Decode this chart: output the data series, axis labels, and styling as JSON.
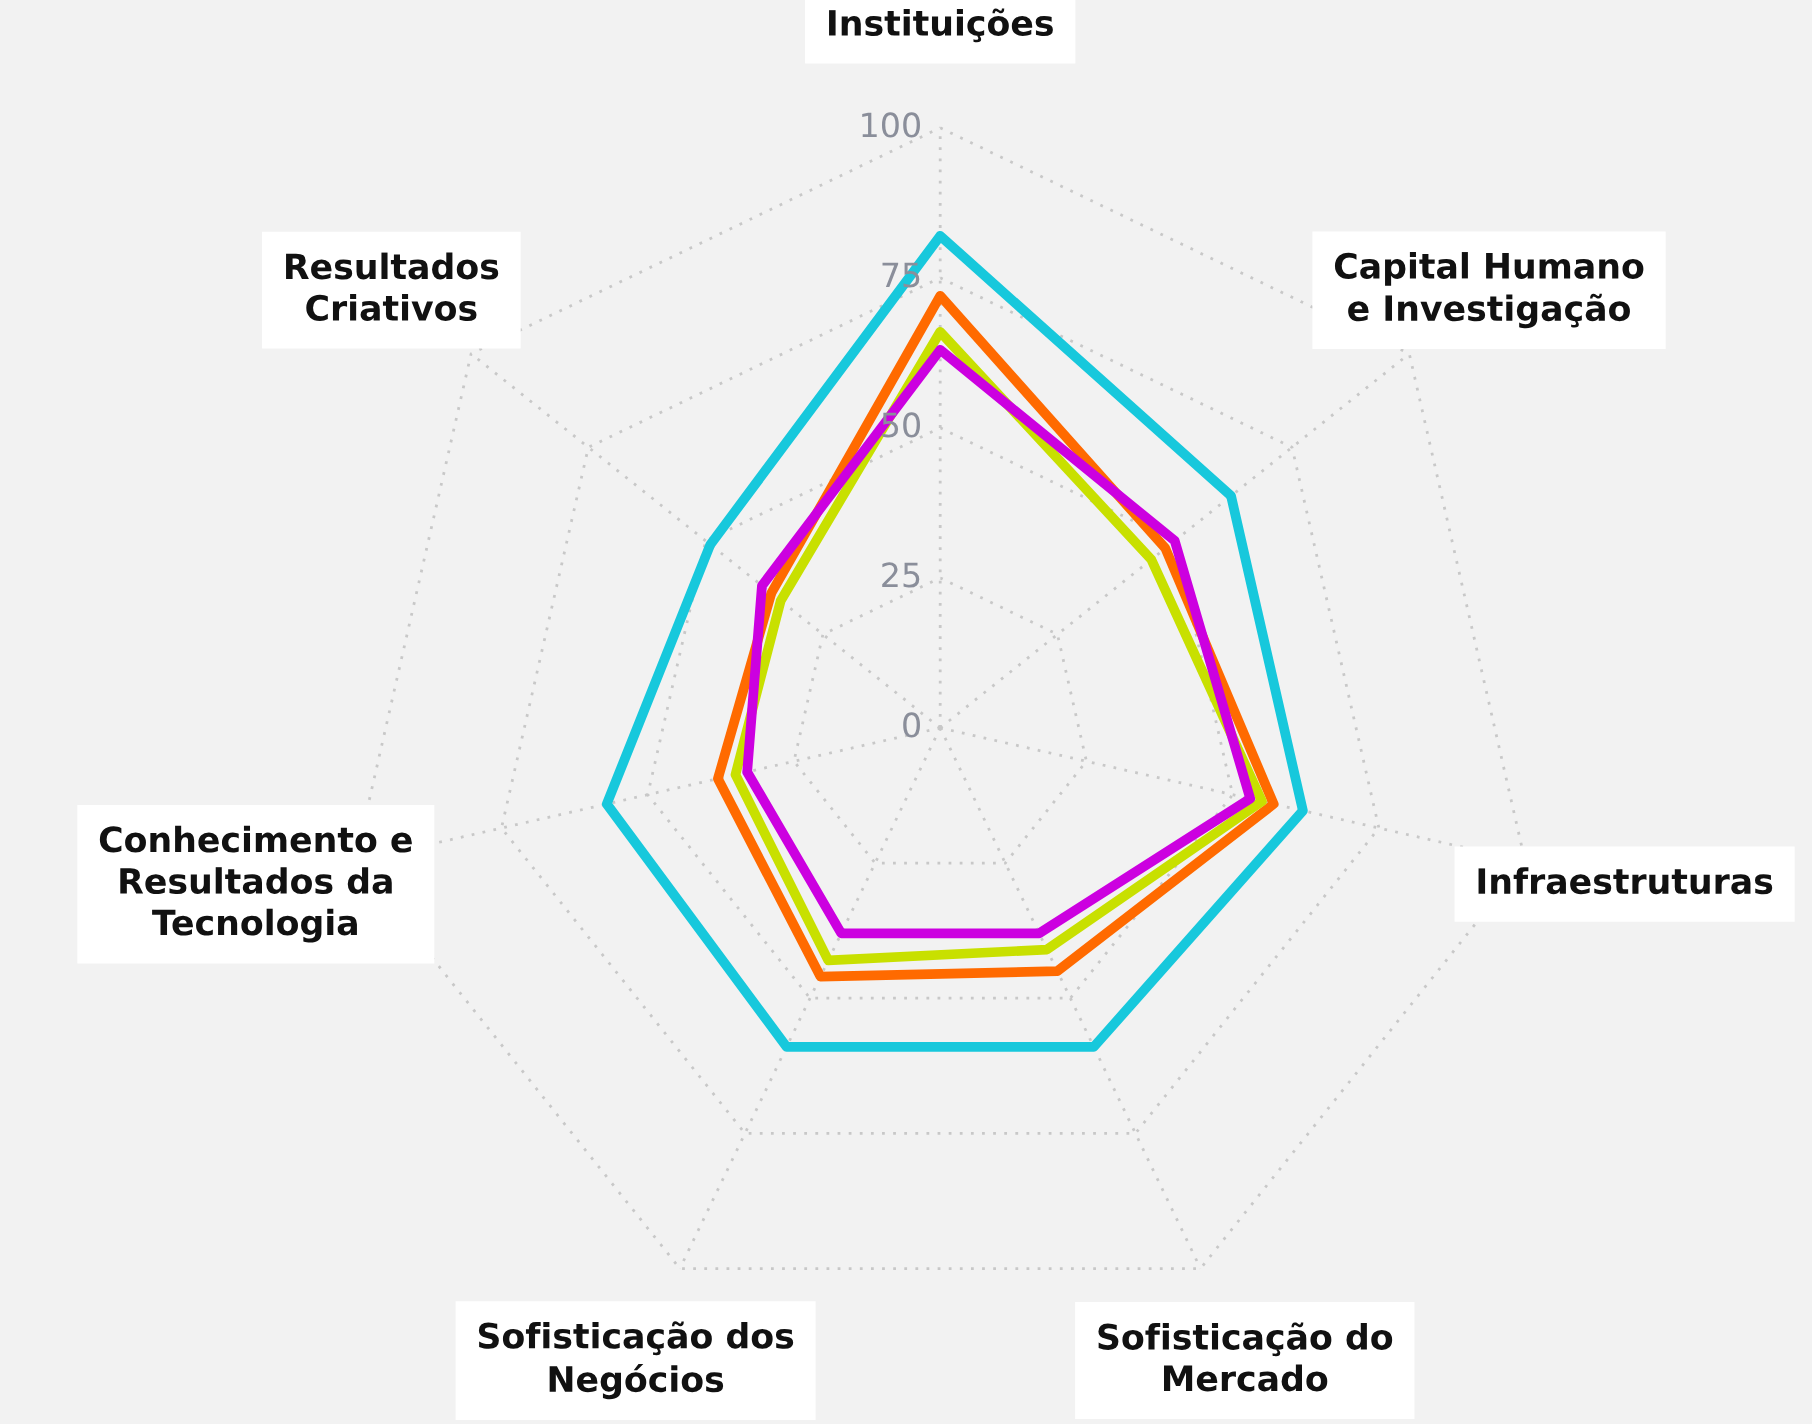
{
  "chart_data": {
    "type": "radar",
    "categories": [
      "Instituições",
      "Capital Humano\ne Investigação",
      "Infraestruturas",
      "Sofisticação do\nMercado",
      "Sofisticação dos\nNegócios",
      "Conhecimento e\nResultados da\nTecnologia",
      "Resultados\nCriativos"
    ],
    "series": [
      {
        "color": "#17c8dc",
        "values": [
          82,
          62,
          62,
          59,
          59,
          57,
          49
        ]
      },
      {
        "color": "#ff6a00",
        "values": [
          72,
          48,
          57,
          45,
          46,
          38,
          36
        ]
      },
      {
        "color": "#c8e000",
        "values": [
          66,
          45,
          55,
          41,
          43,
          35,
          34
        ]
      },
      {
        "color": "#cc00e0",
        "values": [
          63,
          50,
          53,
          38,
          38,
          33,
          38
        ]
      }
    ],
    "ylim": [
      0,
      100
    ],
    "yticks": [
      0,
      25,
      50,
      75,
      100
    ],
    "grid": true,
    "line_style": "solid",
    "marker": "none"
  }
}
